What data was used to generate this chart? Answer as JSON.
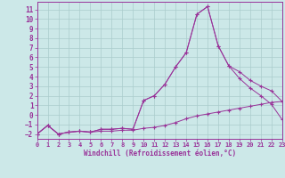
{
  "background_color": "#cce8e8",
  "grid_color": "#aacccc",
  "line_color": "#993399",
  "xlim": [
    0,
    23
  ],
  "ylim": [
    -2.5,
    11.8
  ],
  "xticks": [
    0,
    1,
    2,
    3,
    4,
    5,
    6,
    7,
    8,
    9,
    10,
    11,
    12,
    13,
    14,
    15,
    16,
    17,
    18,
    19,
    20,
    21,
    22,
    23
  ],
  "yticks": [
    -2,
    -1,
    0,
    1,
    2,
    3,
    4,
    5,
    6,
    7,
    8,
    9,
    10,
    11
  ],
  "xlabel": "Windchill (Refroidissement éolien,°C)",
  "line1_x": [
    0,
    1,
    2,
    3,
    4,
    5,
    6,
    7,
    8,
    9,
    10,
    11,
    12,
    13,
    14,
    15,
    16,
    17,
    18,
    19,
    20,
    21,
    22,
    23
  ],
  "line1_y": [
    -2.0,
    -1.1,
    -2.0,
    -1.8,
    -1.7,
    -1.8,
    -1.7,
    -1.7,
    -1.6,
    -1.6,
    -1.4,
    -1.3,
    -1.1,
    -0.8,
    -0.4,
    -0.1,
    0.1,
    0.3,
    0.5,
    0.7,
    0.9,
    1.1,
    1.3,
    1.4
  ],
  "line2_x": [
    0,
    1,
    2,
    3,
    4,
    5,
    6,
    7,
    8,
    9,
    10,
    11,
    12,
    13,
    14,
    15,
    16,
    17,
    18,
    19,
    20,
    21,
    22,
    23
  ],
  "line2_y": [
    -2.0,
    -1.1,
    -2.0,
    -1.8,
    -1.7,
    -1.8,
    -1.5,
    -1.5,
    -1.4,
    -1.5,
    1.5,
    2.0,
    3.2,
    5.0,
    6.5,
    10.5,
    11.3,
    7.2,
    5.1,
    3.8,
    2.8,
    2.0,
    1.1,
    -0.5
  ],
  "line3_x": [
    0,
    1,
    2,
    3,
    4,
    5,
    6,
    7,
    8,
    9,
    10,
    11,
    12,
    13,
    14,
    15,
    16,
    17,
    18,
    19,
    20,
    21,
    22,
    23
  ],
  "line3_y": [
    -2.0,
    -1.1,
    -2.0,
    -1.8,
    -1.7,
    -1.8,
    -1.5,
    -1.5,
    -1.4,
    -1.5,
    1.5,
    2.0,
    3.2,
    5.0,
    6.5,
    10.5,
    11.3,
    7.2,
    5.1,
    4.5,
    3.6,
    3.0,
    2.5,
    1.4
  ]
}
